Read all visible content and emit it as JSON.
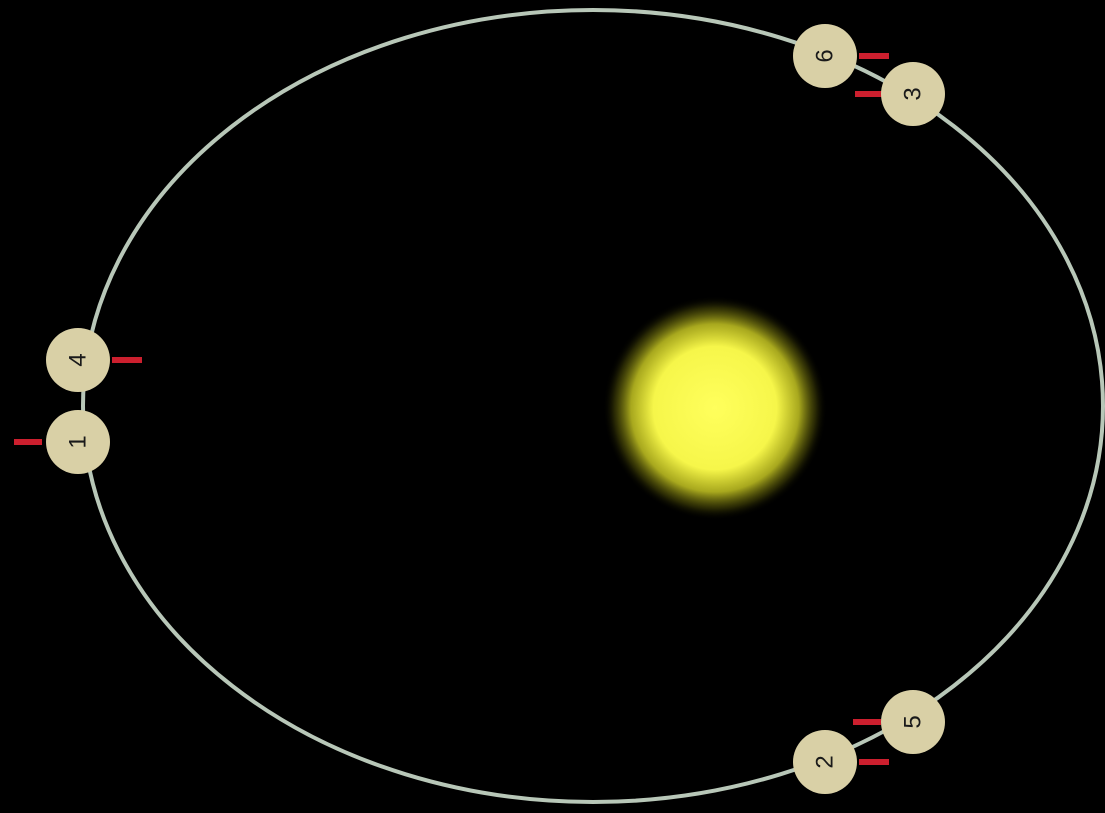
{
  "diagram": {
    "colors": {
      "background": "#000000",
      "orbit": "#b8c7b8",
      "sun_core": "#ffff55",
      "sun_glow": "#e6e626",
      "planet_fill": "#d9d0a6",
      "planet_text": "#1a1a1a",
      "marker": "#cc1f2e"
    },
    "planets": [
      {
        "label": "1"
      },
      {
        "label": "4"
      },
      {
        "label": "6"
      },
      {
        "label": "3"
      },
      {
        "label": "5"
      },
      {
        "label": "2"
      }
    ]
  }
}
